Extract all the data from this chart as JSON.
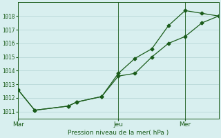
{
  "title": "Pression niveau de la mer( hPa )",
  "bg_color": "#d8efef",
  "grid_color": "#b8d8d8",
  "line_color": "#1a5c1a",
  "marker_color": "#1a5c1a",
  "ylim": [
    1010.5,
    1019.0
  ],
  "yticks": [
    1011,
    1012,
    1013,
    1014,
    1015,
    1016,
    1017,
    1018
  ],
  "xtick_labels": [
    "Mar",
    "Jeu",
    "Mer"
  ],
  "xtick_positions": [
    0.0,
    0.5,
    0.833
  ],
  "line1_x": [
    0.0,
    0.083,
    0.25,
    0.292,
    0.417,
    0.5,
    0.583,
    0.667,
    0.75,
    0.833,
    0.917,
    1.0
  ],
  "line1_y": [
    1012.6,
    1011.1,
    1011.4,
    1011.7,
    1012.1,
    1013.8,
    1014.9,
    1015.6,
    1017.3,
    1018.4,
    1018.2,
    1018.0
  ],
  "line2_x": [
    0.0,
    0.083,
    0.25,
    0.292,
    0.417,
    0.5,
    0.583,
    0.667,
    0.75,
    0.833,
    0.917,
    1.0
  ],
  "line2_y": [
    1012.6,
    1011.1,
    1011.4,
    1011.7,
    1012.1,
    1013.6,
    1013.8,
    1015.0,
    1016.0,
    1016.5,
    1017.5,
    1018.0
  ],
  "xmin": 0.0,
  "xmax": 1.0,
  "figwidth": 3.2,
  "figheight": 2.0,
  "dpi": 100
}
